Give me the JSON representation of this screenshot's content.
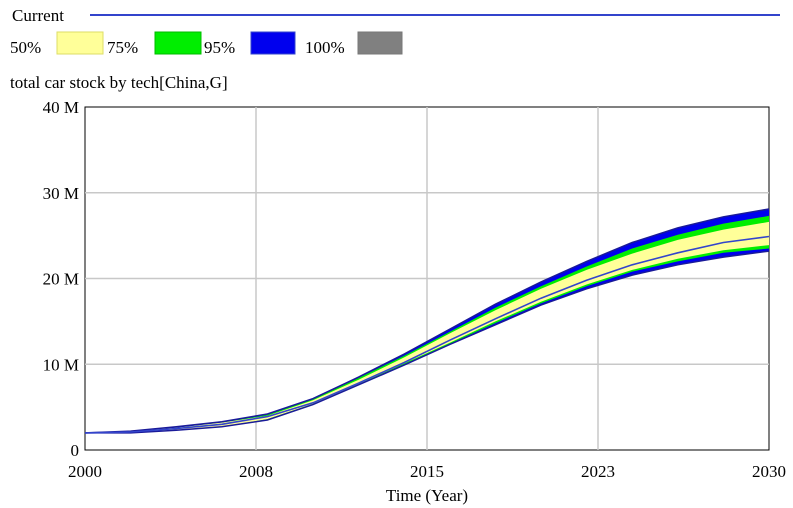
{
  "legend": {
    "current_label": "Current",
    "current_color": "#3344cc",
    "bands": [
      {
        "label": "50%",
        "color": "#ffff99",
        "edge": "#dddd66"
      },
      {
        "label": "75%",
        "color": "#00ee00",
        "edge": "#00bb00"
      },
      {
        "label": "95%",
        "color": "#0000ee",
        "edge": "#3344cc"
      },
      {
        "label": "100%",
        "color": "#808080",
        "edge": "#777777"
      }
    ]
  },
  "chart_data": {
    "type": "area",
    "title": "total car stock by tech[China,G]",
    "xlabel": "Time (Year)",
    "ylabel": "",
    "x_ticks": [
      "2000",
      "2008",
      "2015",
      "2023",
      "2030"
    ],
    "y_ticks": [
      "0",
      "10 M",
      "20 M",
      "30 M",
      "40 M"
    ],
    "xlim": [
      2000,
      2030
    ],
    "ylim": [
      0,
      40
    ],
    "y_unit": "M",
    "grid": true,
    "x": [
      2000,
      2002,
      2004,
      2006,
      2008,
      2010,
      2012,
      2014,
      2016,
      2018,
      2020,
      2022,
      2024,
      2026,
      2028,
      2030
    ],
    "series": [
      {
        "name": "Current",
        "values": [
          2.0,
          2.1,
          2.5,
          3.0,
          3.9,
          5.5,
          7.8,
          10.2,
          12.8,
          15.3,
          17.7,
          19.8,
          21.6,
          23.0,
          24.2,
          24.9
        ]
      }
    ],
    "bands": [
      {
        "name": "95%",
        "lower": [
          2.0,
          2.0,
          2.3,
          2.7,
          3.5,
          5.3,
          7.6,
          9.9,
          12.3,
          14.6,
          16.9,
          18.8,
          20.4,
          21.6,
          22.5,
          23.2
        ],
        "upper": [
          2.0,
          2.2,
          2.7,
          3.3,
          4.2,
          6.0,
          8.5,
          11.2,
          14.1,
          17.0,
          19.6,
          22.0,
          24.2,
          25.9,
          27.2,
          28.1
        ]
      },
      {
        "name": "75%",
        "lower": [
          2.0,
          2.0,
          2.3,
          2.7,
          3.5,
          5.3,
          7.6,
          10.0,
          12.4,
          14.8,
          17.1,
          19.1,
          20.8,
          22.0,
          23.0,
          23.5
        ],
        "upper": [
          2.0,
          2.2,
          2.6,
          3.2,
          4.1,
          5.9,
          8.4,
          11.0,
          13.8,
          16.6,
          19.1,
          21.4,
          23.5,
          25.1,
          26.4,
          27.3
        ]
      },
      {
        "name": "50%",
        "lower": [
          2.0,
          2.0,
          2.3,
          2.7,
          3.6,
          5.4,
          7.7,
          10.1,
          12.5,
          15.0,
          17.3,
          19.3,
          21.0,
          22.3,
          23.3,
          23.9
        ],
        "upper": [
          2.0,
          2.2,
          2.6,
          3.2,
          4.0,
          5.8,
          8.2,
          10.8,
          13.6,
          16.3,
          18.8,
          21.0,
          22.9,
          24.5,
          25.7,
          26.6
        ]
      }
    ]
  }
}
